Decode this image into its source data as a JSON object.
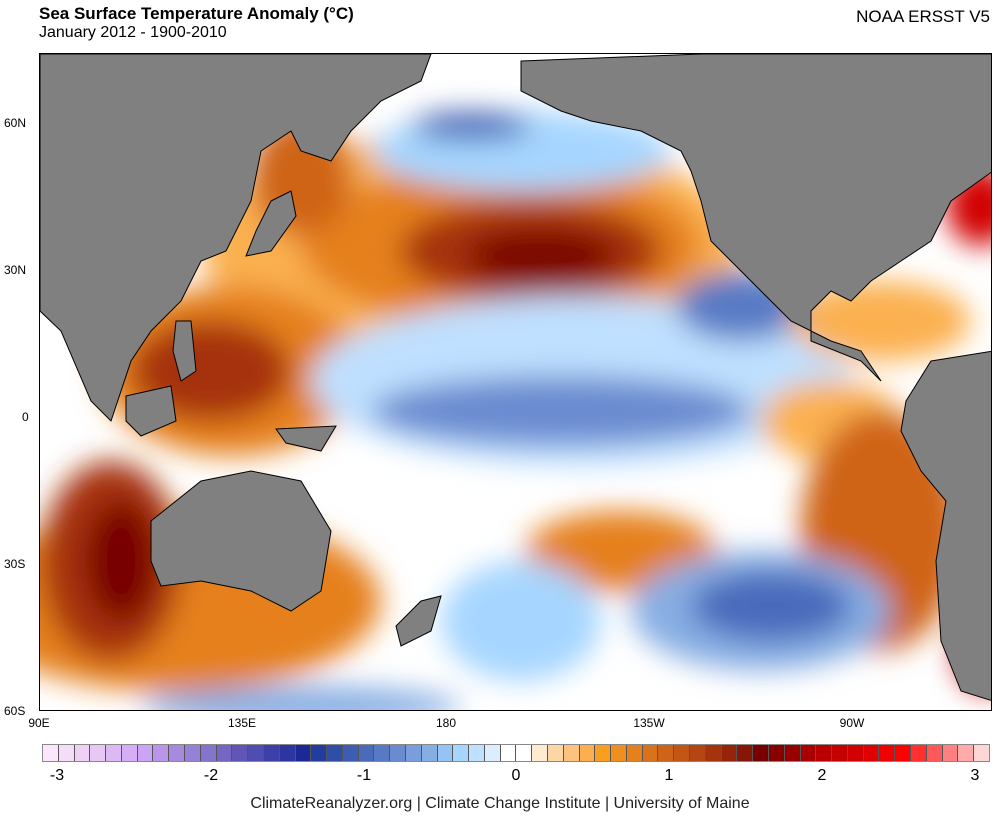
{
  "header": {
    "title": "Sea Surface Temperature Anomaly (°C)",
    "subtitle": "January 2012 - 1900-2010",
    "dataset": "NOAA ERSST V5"
  },
  "map": {
    "lat_labels": [
      "60N",
      "30N",
      "0",
      "30S",
      "60S"
    ],
    "lon_labels": [
      "90E",
      "135E",
      "180",
      "135W",
      "90W"
    ],
    "land_color": "#808080"
  },
  "colorbar": {
    "min": -3,
    "max": 3,
    "step": 0.1,
    "labels": [
      "-3",
      "-2",
      "-1",
      "0",
      "1",
      "2",
      "3"
    ],
    "colors": [
      "#fbe6fb",
      "#f5dcf8",
      "#efd0f7",
      "#e8c6f5",
      "#ddb9f3",
      "#d6aef5",
      "#cba4f5",
      "#b996e8",
      "#a78ade",
      "#9582d6",
      "#8574cc",
      "#7466c2",
      "#6155b8",
      "#4f4cb2",
      "#3d40a8",
      "#2c35a0",
      "#1b2896",
      "#243c9e",
      "#2f4ea8",
      "#3c5db3",
      "#4a6bbb",
      "#587ac5",
      "#6a8bd0",
      "#7a9edb",
      "#87aee3",
      "#95c3f3",
      "#a6d6ff",
      "#bfe0ff",
      "#dceefe",
      "#ffffff",
      "#ffffff",
      "#feebd2",
      "#fdd6a6",
      "#fdc27e",
      "#fbb050",
      "#f99f1f",
      "#f08f1d",
      "#e5801d",
      "#da721b",
      "#cf6418",
      "#c35515",
      "#b54512",
      "#a6330e",
      "#96240b",
      "#861708",
      "#780000",
      "#860000",
      "#980000",
      "#a80000",
      "#b80000",
      "#c40000",
      "#d20000",
      "#e00000",
      "#f00000",
      "#ff0000",
      "#ff3030",
      "#ff5858",
      "#ff8080",
      "#ffabab",
      "#ffd6d6"
    ]
  },
  "footer": {
    "credit": "ClimateReanalyzer.org | Climate Change Institute | University of Maine"
  }
}
